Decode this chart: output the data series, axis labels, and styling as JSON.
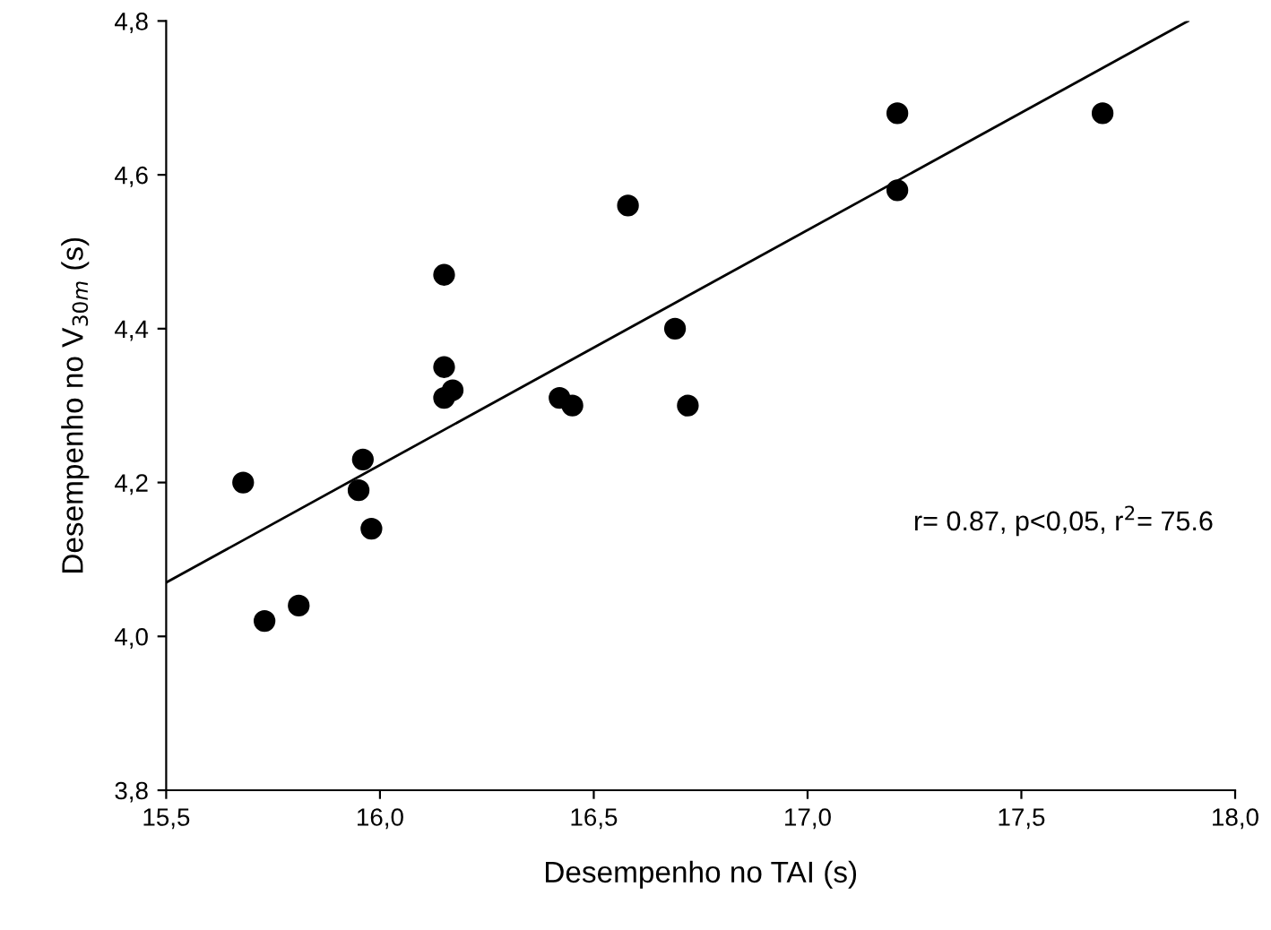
{
  "chart_data": {
    "type": "scatter",
    "xlabel": "Desempenho no TAI (s)",
    "ylabel": "Desempenho no V$_{30m}$ (s)",
    "xlim": [
      15.5,
      18.0
    ],
    "xticks": [
      {
        "value": 15.5,
        "label": "15,5"
      },
      {
        "value": 16.0,
        "label": "16,0"
      },
      {
        "value": 16.5,
        "label": "16,5"
      },
      {
        "value": 17.0,
        "label": "17,0"
      },
      {
        "value": 17.5,
        "label": "17,5"
      },
      {
        "value": 18.0,
        "label": "18,0"
      }
    ],
    "ylim": [
      3.8,
      4.8
    ],
    "yticks": [
      {
        "value": 3.8,
        "label": "3,8"
      },
      {
        "value": 4.0,
        "label": "4,0"
      },
      {
        "value": 4.2,
        "label": "4,2"
      },
      {
        "value": 4.4,
        "label": "4,4"
      },
      {
        "value": 4.6,
        "label": "4,6"
      },
      {
        "value": 4.8,
        "label": "4,8"
      }
    ],
    "grid": false,
    "legend": false,
    "series": [
      {
        "marker": "circle",
        "color": "#000000",
        "x": [
          15.68,
          15.73,
          15.81,
          15.96,
          15.95,
          15.98,
          16.15,
          16.15,
          16.15,
          16.17,
          16.42,
          16.45,
          16.58,
          16.69,
          16.72,
          17.21,
          17.21,
          17.69
        ],
        "values": [
          4.2,
          4.02,
          4.04,
          4.23,
          4.19,
          4.14,
          4.47,
          4.35,
          4.31,
          4.32,
          4.31,
          4.3,
          4.56,
          4.4,
          4.3,
          4.68,
          4.58,
          4.68
        ]
      },
      {
        "type": "line",
        "marker": "none",
        "color": "#000000",
        "x": [
          15.5,
          17.89
        ],
        "values": [
          4.07,
          4.8
        ]
      }
    ],
    "annotations": [
      {
        "text": "r= 0.87, p<0,05, r$^{2}$= 75.6"
      }
    ]
  }
}
